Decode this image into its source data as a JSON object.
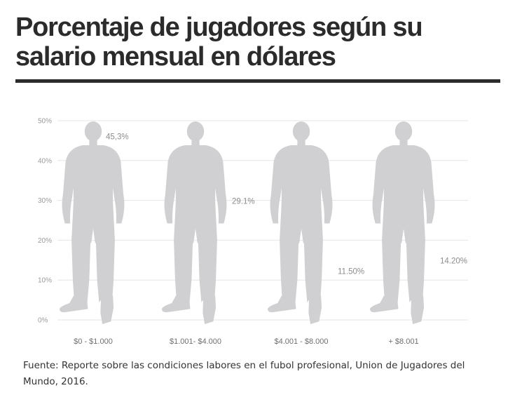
{
  "title": "Porcentaje de jugadores según su salario mensual en dólares",
  "source": "Fuente: Reporte sobre las condiciones labores en el fubol profesional, Union de Jugadores del Mundo, 2016.",
  "chart_data": {
    "type": "bar",
    "title": "Porcentaje de jugadores según su salario mensual en dólares",
    "xlabel": "",
    "ylabel": "",
    "ylim": [
      0,
      50
    ],
    "yticks": [
      "0%",
      "10%",
      "20%",
      "30%",
      "40%",
      "50%"
    ],
    "grid": true,
    "categories": [
      "$0 - $1.000",
      "$1.001- $4.000",
      "$4.001 - $8.000",
      "+ $8.001"
    ],
    "values": [
      45.3,
      29.1,
      11.5,
      14.2
    ],
    "value_labels": [
      "45,3%",
      "29.1%",
      "11.50%",
      "14.20%"
    ],
    "colors": [
      "#4fc882",
      "#e63f58",
      "#f5874a",
      "#4aaed1"
    ],
    "base_color": "#d0d0d2"
  }
}
